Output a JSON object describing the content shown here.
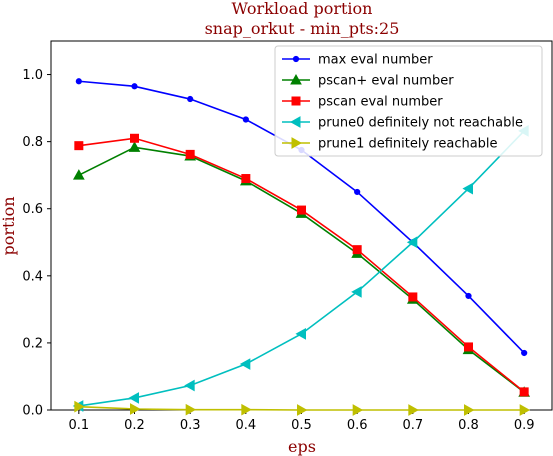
{
  "chart_data": {
    "type": "line",
    "title": "Workload portion",
    "subtitle": "snap_orkut - min_pts:25",
    "xlabel": "eps",
    "ylabel": "portion",
    "x": [
      0.1,
      0.2,
      0.3,
      0.4,
      0.5,
      0.6,
      0.7,
      0.8,
      0.9
    ],
    "x_ticks": [
      "0.1",
      "0.2",
      "0.3",
      "0.4",
      "0.5",
      "0.6",
      "0.7",
      "0.8",
      "0.9"
    ],
    "y_ticks": [
      "0.0",
      "0.2",
      "0.4",
      "0.6",
      "0.8",
      "1.0"
    ],
    "xlim": [
      0.05,
      0.95
    ],
    "ylim": [
      0.0,
      1.1
    ],
    "grid": false,
    "legend_position": "top-right",
    "series": [
      {
        "name": "max eval number",
        "color": "#0000ff",
        "marker": "dot",
        "values": [
          0.98,
          0.965,
          0.927,
          0.866,
          0.775,
          0.65,
          0.5,
          0.34,
          0.17
        ]
      },
      {
        "name": "pscan+ eval number",
        "color": "#008000",
        "marker": "triangle-up",
        "values": [
          0.7,
          0.783,
          0.757,
          0.683,
          0.586,
          0.467,
          0.33,
          0.18,
          0.053
        ]
      },
      {
        "name": "pscan eval number",
        "color": "#ff0000",
        "marker": "square",
        "values": [
          0.788,
          0.81,
          0.762,
          0.69,
          0.596,
          0.478,
          0.337,
          0.188,
          0.054
        ]
      },
      {
        "name": "prune0 definitely not reachable",
        "color": "#00bfbf",
        "marker": "triangle-left",
        "values": [
          0.012,
          0.036,
          0.073,
          0.137,
          0.227,
          0.352,
          0.5,
          0.66,
          0.832
        ]
      },
      {
        "name": "prune1 definitely reachable",
        "color": "#bfbf00",
        "marker": "triangle-right",
        "values": [
          0.01,
          0.003,
          0.001,
          0.001,
          0.0,
          0.0,
          0.0,
          0.0,
          0.0
        ]
      }
    ]
  }
}
